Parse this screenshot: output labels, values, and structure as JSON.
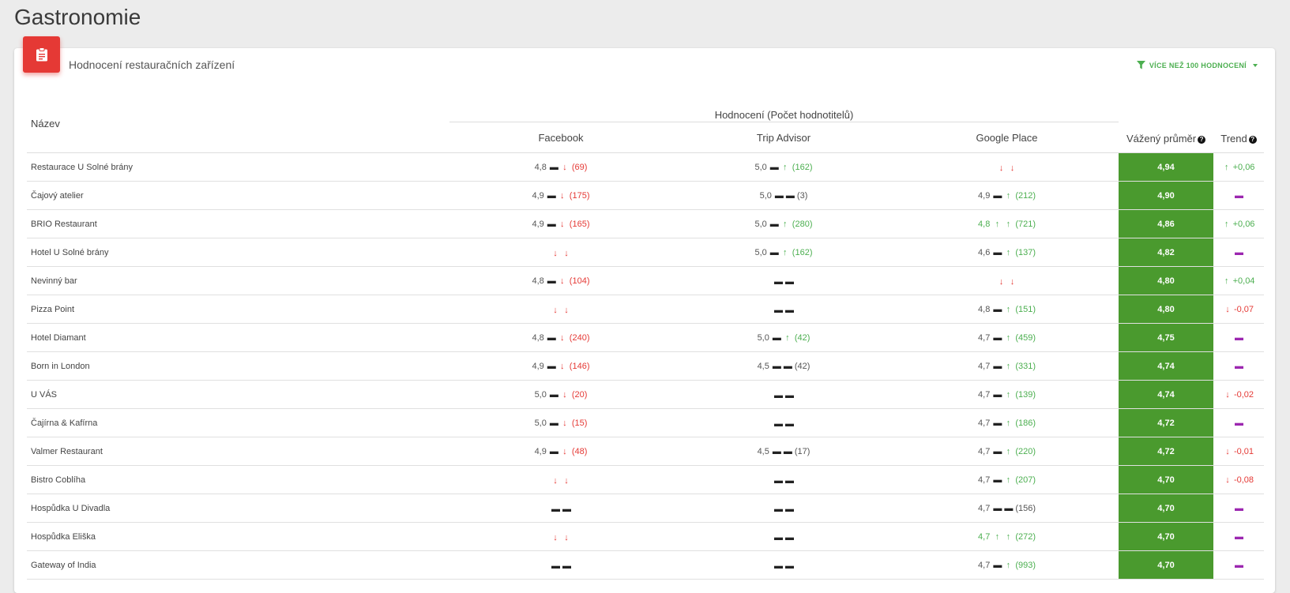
{
  "page": {
    "title": "Gastronomie"
  },
  "card": {
    "icon": "clipboard-icon",
    "title": "Hodnocení restauračních zařízení",
    "filter_label": "VÍCE NEŽ 100 HODNOCENÍ"
  },
  "table": {
    "name_header": "Název",
    "group_header": "Hodnocení (Počet hodnotitelů)",
    "columns": [
      "Facebook",
      "Trip Advisor",
      "Google Place"
    ],
    "avg_header": "Vážený průměr",
    "trend_header": "Trend",
    "rows": [
      {
        "name": "Restaurace U Solné brány",
        "sources": [
          {
            "rating": "4,8",
            "r_color": "grey",
            "r_icon": "same",
            "c_icon": "down",
            "count": "(69)",
            "c_color": "red"
          },
          {
            "rating": "5,0",
            "r_color": "grey",
            "r_icon": "same",
            "c_icon": "up",
            "count": "(162)",
            "c_color": "green"
          },
          {
            "rating": "",
            "r_color": "grey",
            "r_icon": "down",
            "c_icon": "down",
            "count": "",
            "c_color": "grey"
          }
        ],
        "avg": "4,94",
        "trend": {
          "icon": "up",
          "value": "+0,06"
        }
      },
      {
        "name": "Čajový atelier",
        "sources": [
          {
            "rating": "4,9",
            "r_color": "grey",
            "r_icon": "same",
            "c_icon": "down",
            "count": "(175)",
            "c_color": "red"
          },
          {
            "rating": "5,0",
            "r_color": "grey",
            "r_icon": "same",
            "c_icon": "same",
            "count": "(3)",
            "c_color": "grey"
          },
          {
            "rating": "4,9",
            "r_color": "grey",
            "r_icon": "same",
            "c_icon": "up",
            "count": "(212)",
            "c_color": "green"
          }
        ],
        "avg": "4,90",
        "trend": {
          "icon": "same",
          "value": ""
        }
      },
      {
        "name": "BRIO Restaurant",
        "sources": [
          {
            "rating": "4,9",
            "r_color": "grey",
            "r_icon": "same",
            "c_icon": "down",
            "count": "(165)",
            "c_color": "red"
          },
          {
            "rating": "5,0",
            "r_color": "grey",
            "r_icon": "same",
            "c_icon": "up",
            "count": "(280)",
            "c_color": "green"
          },
          {
            "rating": "4,8",
            "r_color": "green",
            "r_icon": "up",
            "c_icon": "up",
            "count": "(721)",
            "c_color": "green"
          }
        ],
        "avg": "4,86",
        "trend": {
          "icon": "up",
          "value": "+0,06"
        }
      },
      {
        "name": "Hotel U Solné brány",
        "sources": [
          {
            "rating": "",
            "r_color": "grey",
            "r_icon": "down",
            "c_icon": "down",
            "count": "",
            "c_color": "grey"
          },
          {
            "rating": "5,0",
            "r_color": "grey",
            "r_icon": "same",
            "c_icon": "up",
            "count": "(162)",
            "c_color": "green"
          },
          {
            "rating": "4,6",
            "r_color": "grey",
            "r_icon": "same",
            "c_icon": "up",
            "count": "(137)",
            "c_color": "green"
          }
        ],
        "avg": "4,82",
        "trend": {
          "icon": "same",
          "value": ""
        }
      },
      {
        "name": "Nevinný bar",
        "sources": [
          {
            "rating": "4,8",
            "r_color": "grey",
            "r_icon": "same",
            "c_icon": "down",
            "count": "(104)",
            "c_color": "red"
          },
          {
            "rating": "",
            "r_color": "grey",
            "r_icon": "same",
            "c_icon": "same",
            "count": "",
            "c_color": "grey"
          },
          {
            "rating": "",
            "r_color": "grey",
            "r_icon": "down",
            "c_icon": "down",
            "count": "",
            "c_color": "grey"
          }
        ],
        "avg": "4,80",
        "trend": {
          "icon": "up",
          "value": "+0,04"
        }
      },
      {
        "name": "Pizza Point",
        "sources": [
          {
            "rating": "",
            "r_color": "grey",
            "r_icon": "down",
            "c_icon": "down",
            "count": "",
            "c_color": "grey"
          },
          {
            "rating": "",
            "r_color": "grey",
            "r_icon": "same",
            "c_icon": "same",
            "count": "",
            "c_color": "grey"
          },
          {
            "rating": "4,8",
            "r_color": "grey",
            "r_icon": "same",
            "c_icon": "up",
            "count": "(151)",
            "c_color": "green"
          }
        ],
        "avg": "4,80",
        "trend": {
          "icon": "down",
          "value": "-0,07"
        }
      },
      {
        "name": "Hotel Diamant",
        "sources": [
          {
            "rating": "4,8",
            "r_color": "grey",
            "r_icon": "same",
            "c_icon": "down",
            "count": "(240)",
            "c_color": "red"
          },
          {
            "rating": "5,0",
            "r_color": "grey",
            "r_icon": "same",
            "c_icon": "up",
            "count": "(42)",
            "c_color": "green"
          },
          {
            "rating": "4,7",
            "r_color": "grey",
            "r_icon": "same",
            "c_icon": "up",
            "count": "(459)",
            "c_color": "green"
          }
        ],
        "avg": "4,75",
        "trend": {
          "icon": "same",
          "value": ""
        }
      },
      {
        "name": "Born in London",
        "sources": [
          {
            "rating": "4,9",
            "r_color": "grey",
            "r_icon": "same",
            "c_icon": "down",
            "count": "(146)",
            "c_color": "red"
          },
          {
            "rating": "4,5",
            "r_color": "grey",
            "r_icon": "same",
            "c_icon": "same",
            "count": "(42)",
            "c_color": "grey"
          },
          {
            "rating": "4,7",
            "r_color": "grey",
            "r_icon": "same",
            "c_icon": "up",
            "count": "(331)",
            "c_color": "green"
          }
        ],
        "avg": "4,74",
        "trend": {
          "icon": "same",
          "value": ""
        }
      },
      {
        "name": "U VÁS",
        "sources": [
          {
            "rating": "5,0",
            "r_color": "grey",
            "r_icon": "same",
            "c_icon": "down",
            "count": "(20)",
            "c_color": "red"
          },
          {
            "rating": "",
            "r_color": "grey",
            "r_icon": "same",
            "c_icon": "same",
            "count": "",
            "c_color": "grey"
          },
          {
            "rating": "4,7",
            "r_color": "grey",
            "r_icon": "same",
            "c_icon": "up",
            "count": "(139)",
            "c_color": "green"
          }
        ],
        "avg": "4,74",
        "trend": {
          "icon": "down",
          "value": "-0,02"
        }
      },
      {
        "name": "Čajírna & Kafírna",
        "sources": [
          {
            "rating": "5,0",
            "r_color": "grey",
            "r_icon": "same",
            "c_icon": "down",
            "count": "(15)",
            "c_color": "red"
          },
          {
            "rating": "",
            "r_color": "grey",
            "r_icon": "same",
            "c_icon": "same",
            "count": "",
            "c_color": "grey"
          },
          {
            "rating": "4,7",
            "r_color": "grey",
            "r_icon": "same",
            "c_icon": "up",
            "count": "(186)",
            "c_color": "green"
          }
        ],
        "avg": "4,72",
        "trend": {
          "icon": "same",
          "value": ""
        }
      },
      {
        "name": "Valmer Restaurant",
        "sources": [
          {
            "rating": "4,9",
            "r_color": "grey",
            "r_icon": "same",
            "c_icon": "down",
            "count": "(48)",
            "c_color": "red"
          },
          {
            "rating": "4,5",
            "r_color": "grey",
            "r_icon": "same",
            "c_icon": "same",
            "count": "(17)",
            "c_color": "grey"
          },
          {
            "rating": "4,7",
            "r_color": "grey",
            "r_icon": "same",
            "c_icon": "up",
            "count": "(220)",
            "c_color": "green"
          }
        ],
        "avg": "4,72",
        "trend": {
          "icon": "down",
          "value": "-0,01"
        }
      },
      {
        "name": "Bistro Coblíha",
        "sources": [
          {
            "rating": "",
            "r_color": "grey",
            "r_icon": "down",
            "c_icon": "down",
            "count": "",
            "c_color": "grey"
          },
          {
            "rating": "",
            "r_color": "grey",
            "r_icon": "same",
            "c_icon": "same",
            "count": "",
            "c_color": "grey"
          },
          {
            "rating": "4,7",
            "r_color": "grey",
            "r_icon": "same",
            "c_icon": "up",
            "count": "(207)",
            "c_color": "green"
          }
        ],
        "avg": "4,70",
        "trend": {
          "icon": "down",
          "value": "-0,08"
        }
      },
      {
        "name": "Hospůdka U Divadla",
        "sources": [
          {
            "rating": "",
            "r_color": "grey",
            "r_icon": "same",
            "c_icon": "same",
            "count": "",
            "c_color": "grey"
          },
          {
            "rating": "",
            "r_color": "grey",
            "r_icon": "same",
            "c_icon": "same",
            "count": "",
            "c_color": "grey"
          },
          {
            "rating": "4,7",
            "r_color": "grey",
            "r_icon": "same",
            "c_icon": "same",
            "count": "(156)",
            "c_color": "grey"
          }
        ],
        "avg": "4,70",
        "trend": {
          "icon": "same",
          "value": ""
        }
      },
      {
        "name": "Hospůdka Eliška",
        "sources": [
          {
            "rating": "",
            "r_color": "grey",
            "r_icon": "down",
            "c_icon": "down",
            "count": "",
            "c_color": "grey"
          },
          {
            "rating": "",
            "r_color": "grey",
            "r_icon": "same",
            "c_icon": "same",
            "count": "",
            "c_color": "grey"
          },
          {
            "rating": "4,7",
            "r_color": "green",
            "r_icon": "up",
            "c_icon": "up",
            "count": "(272)",
            "c_color": "green"
          }
        ],
        "avg": "4,70",
        "trend": {
          "icon": "same",
          "value": ""
        }
      },
      {
        "name": "Gateway of India",
        "sources": [
          {
            "rating": "",
            "r_color": "grey",
            "r_icon": "same",
            "c_icon": "same",
            "count": "",
            "c_color": "grey"
          },
          {
            "rating": "",
            "r_color": "grey",
            "r_icon": "same",
            "c_icon": "same",
            "count": "",
            "c_color": "grey"
          },
          {
            "rating": "4,7",
            "r_color": "grey",
            "r_icon": "same",
            "c_icon": "up",
            "count": "(993)",
            "c_color": "green"
          }
        ],
        "avg": "4,70",
        "trend": {
          "icon": "same",
          "value": ""
        }
      }
    ]
  },
  "colors": {
    "accent_red": "#e53935",
    "green": "#4caf50",
    "avg_bg": "#4a9a2e",
    "trend_same": "#9c27b0"
  }
}
